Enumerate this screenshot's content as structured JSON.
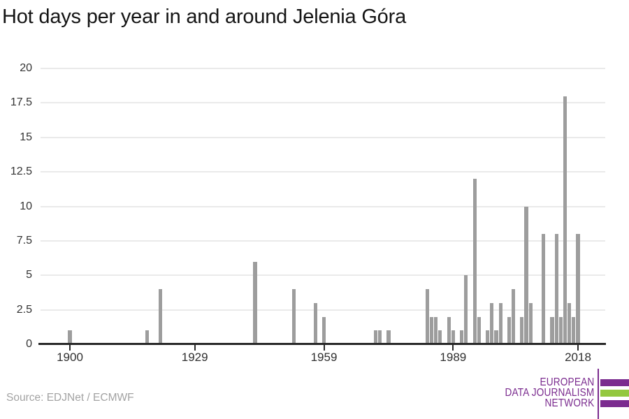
{
  "title": "Hot days per year in and around Jelenia Góra",
  "source": "Source: EDJNet / ECMWF",
  "colors": {
    "bar": "#9d9d9d",
    "grid": "#eaeaea",
    "axis": "#282828",
    "title_text": "#141414",
    "tick_label": "#333333",
    "source_text": "#a3a3a3",
    "logo_purple": "#7b2c8f",
    "logo_green": "#93c83e"
  },
  "logo": {
    "lines": [
      "EUROPEAN",
      "DATA JOURNALISM",
      "NETWORK"
    ]
  },
  "chart_data": {
    "type": "bar",
    "title": "Hot days per year in and around Jelenia Góra",
    "xlabel": "",
    "ylabel": "",
    "xlim": [
      1893,
      2024
    ],
    "ylim": [
      0,
      20
    ],
    "x_ticks": [
      1900,
      1929,
      1959,
      1989,
      2018
    ],
    "y_ticks": [
      0,
      2.5,
      5,
      7.5,
      10,
      12.5,
      15,
      17.5,
      20
    ],
    "grid": "horizontal",
    "legend": "none",
    "note": "years not listed have value 0",
    "bars": [
      {
        "year": 1900,
        "value": 1
      },
      {
        "year": 1918,
        "value": 1
      },
      {
        "year": 1921,
        "value": 4
      },
      {
        "year": 1943,
        "value": 6
      },
      {
        "year": 1952,
        "value": 4
      },
      {
        "year": 1957,
        "value": 3
      },
      {
        "year": 1959,
        "value": 2
      },
      {
        "year": 1971,
        "value": 1
      },
      {
        "year": 1972,
        "value": 1
      },
      {
        "year": 1974,
        "value": 1
      },
      {
        "year": 1983,
        "value": 4
      },
      {
        "year": 1984,
        "value": 2
      },
      {
        "year": 1985,
        "value": 2
      },
      {
        "year": 1986,
        "value": 1
      },
      {
        "year": 1988,
        "value": 2
      },
      {
        "year": 1989,
        "value": 1
      },
      {
        "year": 1991,
        "value": 1
      },
      {
        "year": 1992,
        "value": 5
      },
      {
        "year": 1994,
        "value": 12
      },
      {
        "year": 1995,
        "value": 2
      },
      {
        "year": 1997,
        "value": 1
      },
      {
        "year": 1998,
        "value": 3
      },
      {
        "year": 1999,
        "value": 1
      },
      {
        "year": 2000,
        "value": 3
      },
      {
        "year": 2002,
        "value": 2
      },
      {
        "year": 2003,
        "value": 4
      },
      {
        "year": 2005,
        "value": 2
      },
      {
        "year": 2006,
        "value": 10
      },
      {
        "year": 2007,
        "value": 3
      },
      {
        "year": 2010,
        "value": 8
      },
      {
        "year": 2012,
        "value": 2
      },
      {
        "year": 2013,
        "value": 8
      },
      {
        "year": 2014,
        "value": 2
      },
      {
        "year": 2015,
        "value": 18
      },
      {
        "year": 2016,
        "value": 3
      },
      {
        "year": 2017,
        "value": 2
      },
      {
        "year": 2018,
        "value": 8
      }
    ]
  }
}
